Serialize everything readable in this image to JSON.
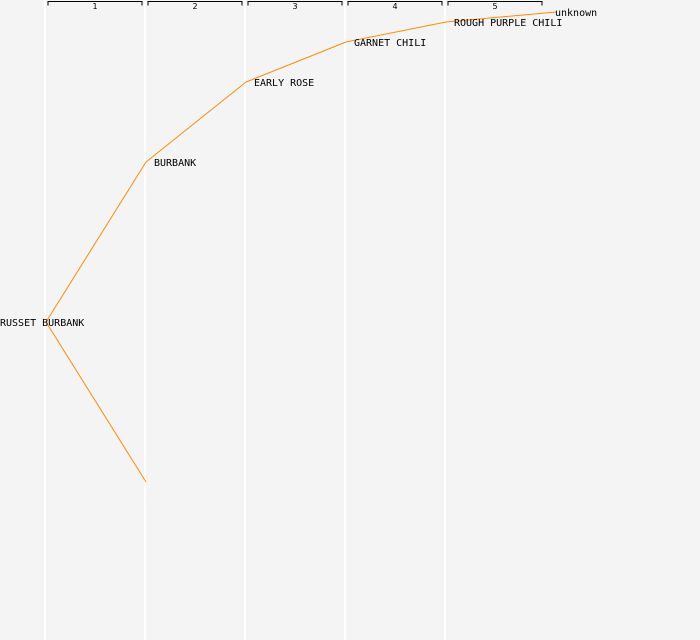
{
  "generations": [
    "1",
    "2",
    "3",
    "4",
    "5"
  ],
  "nodes": [
    {
      "id": "russet-burbank",
      "label": "RUSSET BURBANK",
      "generation": 0,
      "row": 16
    },
    {
      "id": "burbank",
      "label": "BURBANK",
      "generation": 1,
      "row": 8
    },
    {
      "id": "unknown-parent",
      "label": "",
      "generation": 1,
      "row": 24
    },
    {
      "id": "early-rose",
      "label": "EARLY ROSE",
      "generation": 2,
      "row": 4
    },
    {
      "id": "garnet-chili",
      "label": "GARNET CHILI",
      "generation": 3,
      "row": 2
    },
    {
      "id": "rough-purple-chili",
      "label": "ROUGH PURPLE CHILI",
      "generation": 4,
      "row": 1
    },
    {
      "id": "unknown",
      "label": "unknown",
      "generation": 5,
      "row": 0.5
    }
  ],
  "edges": [
    [
      "russet-burbank",
      "burbank"
    ],
    [
      "russet-burbank",
      "unknown-parent"
    ],
    [
      "burbank",
      "early-rose"
    ],
    [
      "early-rose",
      "garnet-chili"
    ],
    [
      "garnet-chili",
      "rough-purple-chili"
    ],
    [
      "rough-purple-chili",
      "unknown"
    ]
  ],
  "colors": {
    "background": "#f4f4f4",
    "edge": "#ff8c00",
    "column_line": "#ffffff",
    "bracket": "#000000",
    "text": "#000000"
  }
}
